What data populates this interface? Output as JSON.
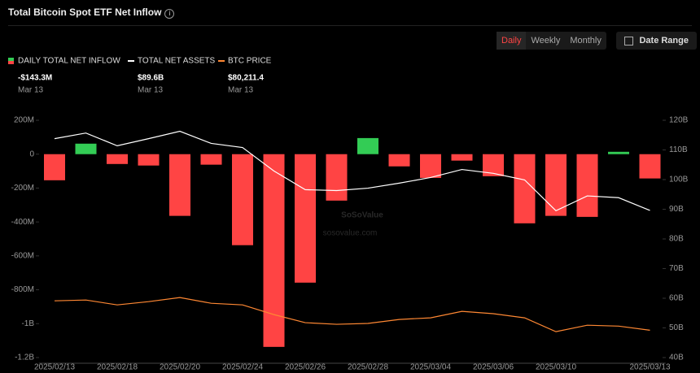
{
  "header": {
    "title": "Total Bitcoin Spot ETF Net Inflow",
    "tabs": [
      "Daily",
      "Weekly",
      "Monthly"
    ],
    "date_range": "Date Range"
  },
  "stats": [
    {
      "value": "-$143.3M",
      "date": "Mar 13"
    },
    {
      "value": "$89.6B",
      "date": "Mar 13"
    },
    {
      "value": "$80,211.4",
      "date": "Mar 13"
    }
  ],
  "watermark": [
    "SoSoValue",
    "sosovalue.com"
  ],
  "chart_data": {
    "type": "bar",
    "categories": [
      "2025/02/13",
      null,
      "2025/02/18",
      null,
      "2025/02/20",
      null,
      "2025/02/24",
      null,
      "2025/02/26",
      null,
      "2025/02/28",
      null,
      "2025/03/04",
      null,
      "2025/03/06",
      null,
      "2025/03/10",
      null,
      null,
      "2025/03/13"
    ],
    "series": [
      {
        "name": "DAILY TOTAL NET INFLOW",
        "type": "bar",
        "color": "#ff4444",
        "positive_color": "#33cc55",
        "values": [
          -154,
          62,
          -58,
          -67,
          -364,
          -62,
          -537,
          -1137,
          -758,
          -274,
          95,
          -72,
          -140,
          -38,
          -130,
          -408,
          -364,
          -370,
          14,
          -143.3
        ]
      },
      {
        "name": "TOTAL NET ASSETS",
        "type": "line",
        "axis": "y2",
        "color": "#ffffff",
        "values": [
          113.8,
          115.7,
          111.4,
          113.8,
          116.3,
          112.2,
          110.8,
          102.9,
          96.6,
          96.3,
          97.1,
          98.8,
          100.7,
          103.4,
          102.1,
          99.9,
          89.5,
          94.5,
          93.9,
          89.6
        ]
      },
      {
        "name": "BTC PRICE",
        "type": "line",
        "axis": "y3",
        "color": "#ff8833",
        "values": [
          96570,
          97000,
          94300,
          96100,
          98400,
          95200,
          94300,
          88900,
          84400,
          83500,
          84000,
          86200,
          87100,
          90700,
          89400,
          87100,
          79400,
          83000,
          82500,
          80211.4
        ]
      }
    ],
    "ylim": [
      -1200,
      300
    ],
    "yticks": [
      {
        "value": 200,
        "label": "200M"
      },
      0,
      {
        "value": -200,
        "label": "-200M"
      },
      {
        "value": -400,
        "label": "-400M"
      },
      {
        "value": -600,
        "label": "-600M"
      },
      {
        "value": -800,
        "label": "-800M"
      },
      {
        "value": -1000,
        "label": "-1B"
      },
      {
        "value": -1200,
        "label": "-1.2B"
      }
    ],
    "y2lim": [
      40,
      120
    ],
    "y2ticks": [
      {
        "value": 120,
        "label": "120B"
      },
      {
        "value": 110,
        "label": "110B"
      },
      {
        "value": 100,
        "label": "100B"
      },
      {
        "value": 90,
        "label": "90B"
      },
      {
        "value": 80,
        "label": "80B"
      },
      {
        "value": 70,
        "label": "70B"
      },
      {
        "value": 60,
        "label": "60B"
      },
      {
        "value": 50,
        "label": "50B"
      },
      {
        "value": 40,
        "label": "40B"
      }
    ],
    "y3lim": [
      65000,
      197000
    ]
  }
}
